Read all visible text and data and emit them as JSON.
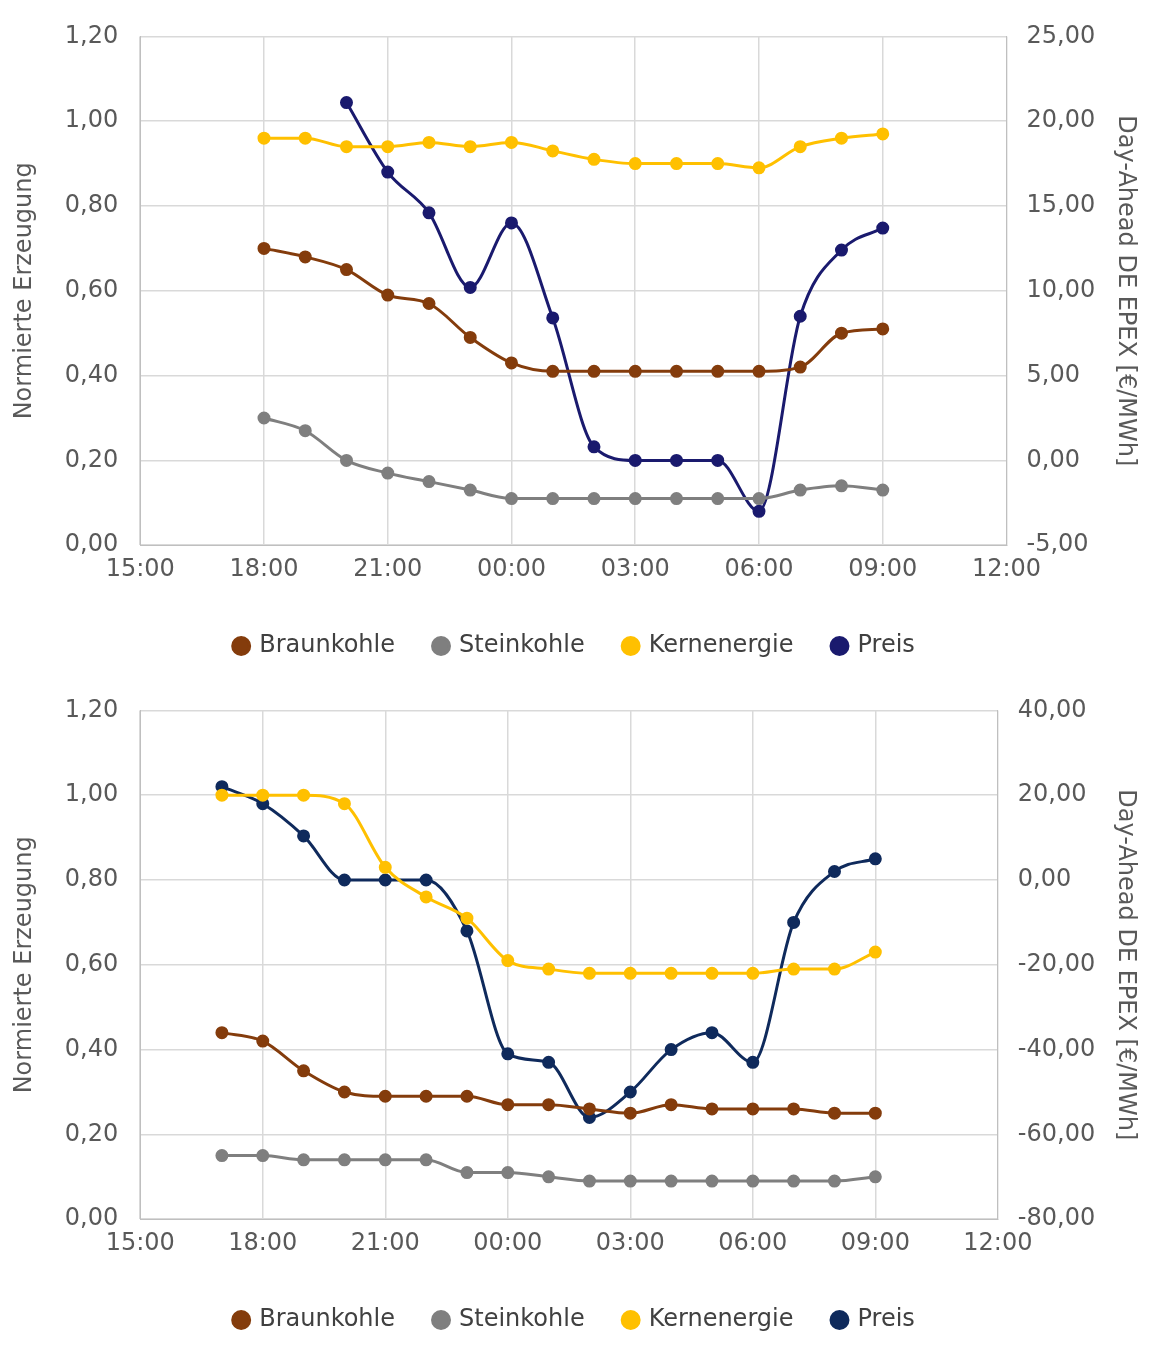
{
  "chart_data": [
    {
      "type": "line",
      "ylabel": "Normierte Erzeugung",
      "y2label": "Day-Ahead DE EPEX [€/MWh]",
      "x": [
        "--01-01T18:00",
        "--01-01T19:00",
        "--01-01T20:00",
        "--01-01T21:00",
        "--01-01T22:00",
        "--01-01T23:00",
        "--01-02T00:00",
        "--01-02T01:00",
        "--01-02T02:00",
        "--01-02T03:00",
        "--01-02T04:00",
        "--01-02T05:00",
        "--01-02T06:00",
        "--01-02T07:00",
        "--01-02T08:00",
        "--01-02T09:00"
      ],
      "xlim": [
        "--01-01T15:00",
        "--01-02T12:00"
      ],
      "xticks": [
        {
          "value": "--01-01T15:00",
          "label": "15:00"
        },
        {
          "value": "--01-01T18:00",
          "label": "18:00"
        },
        {
          "value": "--01-01T21:00",
          "label": "21:00"
        },
        {
          "value": "--01-02T00:00",
          "label": "00:00"
        },
        {
          "value": "--01-02T03:00",
          "label": "03:00"
        },
        {
          "value": "--01-02T06:00",
          "label": "06:00"
        },
        {
          "value": "--01-02T09:00",
          "label": "09:00"
        },
        {
          "value": "--01-02T12:00",
          "label": "12:00"
        }
      ],
      "ylim": [
        0,
        1.2
      ],
      "yticks": [
        {
          "value": 0,
          "label": "0,00"
        },
        {
          "value": 0.2,
          "label": "0,20"
        },
        {
          "value": 0.4,
          "label": "0,40"
        },
        {
          "value": 0.6,
          "label": "0,60"
        },
        {
          "value": 0.8,
          "label": "0,80"
        },
        {
          "value": 1,
          "label": "1,00"
        },
        {
          "value": 1.2,
          "label": "1,20"
        }
      ],
      "y2lim": [
        -5,
        25
      ],
      "y2ticks": [
        {
          "value": -5,
          "label": "-5,00"
        },
        {
          "value": 0,
          "label": "0,00"
        },
        {
          "value": 5,
          "label": "5,00"
        },
        {
          "value": 10,
          "label": "10,00"
        },
        {
          "value": 15,
          "label": "15,00"
        },
        {
          "value": 20,
          "label": "20,00"
        },
        {
          "value": 25,
          "label": "25,00"
        }
      ],
      "grid": true,
      "legend": "bottom",
      "marker": "circle",
      "line_style": "solid",
      "series": [
        {
          "name": "Braunkohle",
          "color": "#843c0c",
          "values": [
            0.7,
            0.68,
            0.65,
            0.59,
            0.57,
            0.49,
            0.43,
            0.41,
            0.41,
            0.41,
            0.41,
            0.41,
            0.41,
            0.42,
            0.5,
            0.51
          ]
        },
        {
          "name": "Steinkohle",
          "color": "#7f7f7f",
          "values": [
            0.3,
            0.27,
            0.2,
            0.17,
            0.15,
            0.13,
            0.11,
            0.11,
            0.11,
            0.11,
            0.11,
            0.11,
            0.11,
            0.13,
            0.14,
            0.13
          ]
        },
        {
          "name": "Kernenergie",
          "color": "#ffc000",
          "values": [
            0.96,
            0.96,
            0.94,
            0.94,
            0.95,
            0.94,
            0.95,
            0.93,
            0.91,
            0.9,
            0.9,
            0.9,
            0.89,
            0.94,
            0.96,
            0.97
          ]
        },
        {
          "name": "Preis",
          "color": "#1a1a6e",
          "axis": "y2",
          "values": [
            null,
            null,
            21.1,
            17.0,
            14.6,
            10.2,
            14.0,
            8.4,
            0.8,
            0.0,
            0.0,
            0.0,
            -3.0,
            8.5,
            12.4,
            13.7
          ]
        }
      ]
    },
    {
      "type": "line",
      "ylabel": "Normierte Erzeugung",
      "y2label": "Day-Ahead DE EPEX [€/MWh]",
      "x": [
        "--01-01T17:00",
        "--01-01T18:00",
        "--01-01T19:00",
        "--01-01T20:00",
        "--01-01T21:00",
        "--01-01T22:00",
        "--01-01T23:00",
        "--01-02T00:00",
        "--01-02T01:00",
        "--01-02T02:00",
        "--01-02T03:00",
        "--01-02T04:00",
        "--01-02T05:00",
        "--01-02T06:00",
        "--01-02T07:00",
        "--01-02T08:00",
        "--01-02T09:00"
      ],
      "xlim": [
        "--01-01T15:00",
        "--01-02T12:00"
      ],
      "xticks": [
        {
          "value": "--01-01T15:00",
          "label": "15:00"
        },
        {
          "value": "--01-01T18:00",
          "label": "18:00"
        },
        {
          "value": "--01-01T21:00",
          "label": "21:00"
        },
        {
          "value": "--01-02T00:00",
          "label": "00:00"
        },
        {
          "value": "--01-02T03:00",
          "label": "03:00"
        },
        {
          "value": "--01-02T06:00",
          "label": "06:00"
        },
        {
          "value": "--01-02T09:00",
          "label": "09:00"
        },
        {
          "value": "--01-02T12:00",
          "label": "12:00"
        }
      ],
      "ylim": [
        0,
        1.2
      ],
      "yticks": [
        {
          "value": 0,
          "label": "0,00"
        },
        {
          "value": 0.2,
          "label": "0,20"
        },
        {
          "value": 0.4,
          "label": "0,40"
        },
        {
          "value": 0.6,
          "label": "0,60"
        },
        {
          "value": 0.8,
          "label": "0,80"
        },
        {
          "value": 1,
          "label": "1,00"
        },
        {
          "value": 1.2,
          "label": "1,20"
        }
      ],
      "y2lim": [
        -80,
        40
      ],
      "y2ticks": [
        {
          "value": -80,
          "label": "-80,00"
        },
        {
          "value": -60,
          "label": "-60,00"
        },
        {
          "value": -40,
          "label": "-40,00"
        },
        {
          "value": -20,
          "label": "-20,00"
        },
        {
          "value": 0,
          "label": "0,00"
        },
        {
          "value": 20,
          "label": "20,00"
        },
        {
          "value": 40,
          "label": "40,00"
        }
      ],
      "grid": true,
      "legend": "bottom",
      "marker": "circle",
      "line_style": "solid",
      "series": [
        {
          "name": "Braunkohle",
          "color": "#843c0c",
          "values": [
            0.44,
            0.42,
            0.35,
            0.3,
            0.29,
            0.29,
            0.29,
            0.27,
            0.27,
            0.26,
            0.25,
            0.27,
            0.26,
            0.26,
            0.26,
            0.25,
            0.25
          ]
        },
        {
          "name": "Steinkohle",
          "color": "#7f7f7f",
          "values": [
            0.15,
            0.15,
            0.14,
            0.14,
            0.14,
            0.14,
            0.11,
            0.11,
            0.1,
            0.09,
            0.09,
            0.09,
            0.09,
            0.09,
            0.09,
            0.09,
            0.1
          ]
        },
        {
          "name": "Kernenergie",
          "color": "#ffc000",
          "values": [
            1.0,
            1.0,
            1.0,
            0.98,
            0.83,
            0.76,
            0.71,
            0.61,
            0.59,
            0.58,
            0.58,
            0.58,
            0.58,
            0.58,
            0.59,
            0.59,
            0.63
          ]
        },
        {
          "name": "Preis",
          "color": "#0f2a5c",
          "axis": "y2",
          "values": [
            22,
            18,
            10.4,
            0,
            0,
            0,
            -12,
            -41,
            -43,
            -56,
            -50,
            -40,
            -36,
            -43,
            -10,
            2,
            5
          ]
        }
      ]
    }
  ]
}
